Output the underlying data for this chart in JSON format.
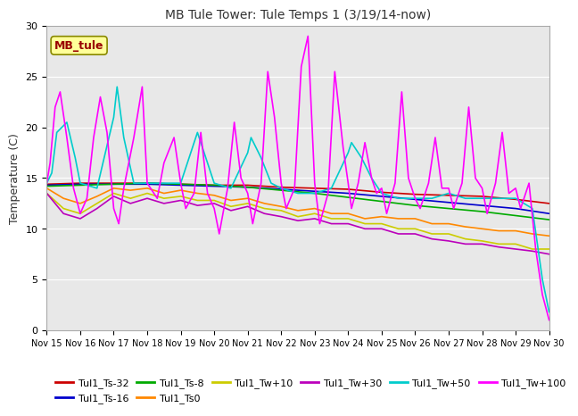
{
  "title": "MB Tule Tower: Tule Temps 1 (3/19/14-now)",
  "ylabel": "Temperature (C)",
  "ylim": [
    0,
    30
  ],
  "yticks": [
    0,
    5,
    10,
    15,
    20,
    25,
    30
  ],
  "xtick_labels": [
    "Nov 15",
    "Nov 16",
    "Nov 17",
    "Nov 18",
    "Nov 19",
    "Nov 20",
    "Nov 21",
    "Nov 22",
    "Nov 23",
    "Nov 24",
    "Nov 25",
    "Nov 26",
    "Nov 27",
    "Nov 28",
    "Nov 29",
    "Nov 30"
  ],
  "background_color": "#e8e8e8",
  "legend_box_label": "MB_tule",
  "legend_box_facecolor": "#ffff99",
  "legend_box_edgecolor": "#888800",
  "legend_box_textcolor": "#990000",
  "series": {
    "Tul1_Ts-32": {
      "color": "#cc0000",
      "lw": 1.2,
      "x": [
        0,
        1,
        2,
        3,
        4,
        5,
        6,
        7,
        8,
        9,
        10,
        11,
        12,
        13,
        14,
        15
      ],
      "y": [
        14.4,
        14.5,
        14.5,
        14.5,
        14.4,
        14.3,
        14.3,
        14.1,
        14.0,
        13.9,
        13.6,
        13.4,
        13.3,
        13.2,
        12.9,
        12.5
      ]
    },
    "Tul1_Ts-16": {
      "color": "#0000cc",
      "lw": 1.2,
      "x": [
        0,
        1,
        2,
        3,
        4,
        5,
        6,
        7,
        8,
        9,
        10,
        11,
        12,
        13,
        14,
        15
      ],
      "y": [
        14.3,
        14.4,
        14.4,
        14.4,
        14.3,
        14.2,
        14.1,
        13.9,
        13.7,
        13.5,
        13.2,
        12.9,
        12.6,
        12.3,
        12.0,
        11.5
      ]
    },
    "Tul1_Ts-8": {
      "color": "#00aa00",
      "lw": 1.2,
      "x": [
        0,
        1,
        2,
        3,
        4,
        5,
        6,
        7,
        8,
        9,
        10,
        11,
        12,
        13,
        14,
        15
      ],
      "y": [
        14.2,
        14.3,
        14.4,
        14.5,
        14.4,
        14.3,
        14.1,
        13.8,
        13.5,
        13.1,
        12.7,
        12.3,
        12.0,
        11.7,
        11.3,
        10.9
      ]
    },
    "Tul1_Ts0": {
      "color": "#ff8800",
      "lw": 1.2,
      "x": [
        0,
        0.5,
        1,
        1.5,
        2,
        2.5,
        3,
        3.5,
        4,
        4.5,
        5,
        5.5,
        6,
        6.5,
        7,
        7.5,
        8,
        8.5,
        9,
        9.5,
        10,
        10.5,
        11,
        11.5,
        12,
        12.5,
        13,
        13.5,
        14,
        14.5,
        15
      ],
      "y": [
        14.0,
        13.0,
        12.5,
        13.2,
        14.0,
        13.8,
        14.0,
        13.5,
        13.8,
        13.5,
        13.3,
        12.8,
        13.0,
        12.5,
        12.2,
        11.8,
        12.0,
        11.5,
        11.5,
        11.0,
        11.2,
        11.0,
        11.0,
        10.5,
        10.5,
        10.2,
        10.0,
        9.8,
        9.8,
        9.5,
        9.3
      ]
    },
    "Tul1_Tw+10": {
      "color": "#cccc00",
      "lw": 1.2,
      "x": [
        0,
        0.5,
        1,
        1.5,
        2,
        2.5,
        3,
        3.5,
        4,
        4.5,
        5,
        5.5,
        6,
        6.5,
        7,
        7.5,
        8,
        8.5,
        9,
        9.5,
        10,
        10.5,
        11,
        11.5,
        12,
        12.5,
        13,
        13.5,
        14,
        14.5,
        15
      ],
      "y": [
        13.5,
        12.0,
        11.5,
        12.5,
        13.5,
        13.0,
        13.5,
        13.0,
        13.2,
        12.8,
        12.8,
        12.2,
        12.5,
        12.0,
        11.8,
        11.2,
        11.5,
        11.0,
        11.0,
        10.5,
        10.5,
        10.0,
        10.0,
        9.5,
        9.5,
        9.0,
        8.8,
        8.5,
        8.5,
        8.0,
        8.0
      ]
    },
    "Tul1_Tw+30": {
      "color": "#bb00bb",
      "lw": 1.2,
      "x": [
        0,
        0.5,
        1,
        1.5,
        2,
        2.5,
        3,
        3.5,
        4,
        4.5,
        5,
        5.5,
        6,
        6.5,
        7,
        7.5,
        8,
        8.5,
        9,
        9.5,
        10,
        10.5,
        11,
        11.5,
        12,
        12.5,
        13,
        13.5,
        14,
        14.5,
        15
      ],
      "y": [
        13.5,
        11.5,
        11.0,
        12.0,
        13.2,
        12.5,
        13.0,
        12.5,
        12.8,
        12.3,
        12.5,
        11.8,
        12.2,
        11.5,
        11.2,
        10.8,
        11.0,
        10.5,
        10.5,
        10.0,
        10.0,
        9.5,
        9.5,
        9.0,
        8.8,
        8.5,
        8.5,
        8.2,
        8.0,
        7.8,
        7.5
      ]
    },
    "Tul1_Tw+50": {
      "color": "#00cccc",
      "lw": 1.2,
      "x": [
        0,
        0.15,
        0.3,
        0.6,
        0.85,
        1.0,
        1.5,
        2,
        2.1,
        2.3,
        2.6,
        3.0,
        3.5,
        4.0,
        4.5,
        5.0,
        5.5,
        6.0,
        6.1,
        6.4,
        6.7,
        7.0,
        7.5,
        8.0,
        8.5,
        9.0,
        9.1,
        9.4,
        9.7,
        10.0,
        10.5,
        11.0,
        11.5,
        12.0,
        12.5,
        13.0,
        13.5,
        14.0,
        14.5,
        14.8,
        15.0
      ],
      "y": [
        14.5,
        15.5,
        19.5,
        20.5,
        17.0,
        14.5,
        14.0,
        21.0,
        24.0,
        19.0,
        14.5,
        14.5,
        14.5,
        14.5,
        19.5,
        14.5,
        14.0,
        17.5,
        19.0,
        17.0,
        14.5,
        14.0,
        13.5,
        13.5,
        14.0,
        17.5,
        18.5,
        17.0,
        15.0,
        13.5,
        13.0,
        13.0,
        13.0,
        13.5,
        13.0,
        13.0,
        13.0,
        13.0,
        12.0,
        5.0,
        1.8
      ]
    },
    "Tul1_Tw+100": {
      "color": "#ff00ff",
      "lw": 1.2,
      "x": [
        0,
        0.1,
        0.25,
        0.4,
        0.6,
        0.8,
        1.0,
        1.2,
        1.4,
        1.6,
        1.8,
        2.0,
        2.15,
        2.3,
        2.6,
        2.85,
        3.0,
        3.3,
        3.5,
        3.8,
        4.0,
        4.15,
        4.4,
        4.6,
        4.8,
        5.0,
        5.15,
        5.4,
        5.6,
        5.8,
        6.0,
        6.15,
        6.4,
        6.6,
        6.8,
        7.0,
        7.15,
        7.4,
        7.6,
        7.8,
        8.0,
        8.15,
        8.4,
        8.6,
        8.85,
        9.0,
        9.1,
        9.3,
        9.5,
        9.7,
        9.85,
        10.0,
        10.15,
        10.4,
        10.6,
        10.8,
        11.0,
        11.15,
        11.4,
        11.6,
        11.8,
        12.0,
        12.15,
        12.4,
        12.6,
        12.8,
        13.0,
        13.15,
        13.4,
        13.6,
        13.8,
        14.0,
        14.15,
        14.4,
        14.6,
        14.8,
        15.0
      ],
      "y": [
        14.5,
        16.5,
        22.0,
        23.5,
        19.0,
        14.0,
        11.5,
        13.0,
        19.0,
        23.0,
        19.5,
        12.0,
        10.5,
        14.0,
        19.0,
        24.0,
        14.5,
        13.0,
        16.5,
        19.0,
        14.5,
        12.0,
        13.5,
        19.5,
        13.5,
        12.0,
        9.5,
        14.0,
        20.5,
        15.0,
        13.5,
        10.5,
        14.5,
        25.5,
        21.0,
        14.5,
        12.0,
        14.0,
        26.0,
        29.0,
        14.5,
        10.5,
        13.5,
        25.5,
        18.0,
        14.5,
        12.0,
        14.5,
        18.5,
        15.0,
        13.5,
        14.0,
        11.5,
        14.5,
        23.5,
        15.0,
        13.0,
        12.0,
        14.5,
        19.0,
        14.0,
        14.0,
        12.0,
        14.5,
        22.0,
        15.0,
        14.0,
        11.5,
        14.5,
        19.5,
        13.5,
        14.0,
        12.0,
        14.5,
        8.0,
        3.5,
        1.0
      ]
    }
  },
  "legend_order": [
    "Tul1_Ts-32",
    "Tul1_Ts-16",
    "Tul1_Ts-8",
    "Tul1_Ts0",
    "Tul1_Tw+10",
    "Tul1_Tw+30",
    "Tul1_Tw+50",
    "Tul1_Tw+100"
  ]
}
